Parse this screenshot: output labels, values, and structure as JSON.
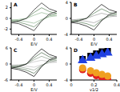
{
  "chart_data": [
    {
      "type": "line",
      "title": "A",
      "x_label": "E/V",
      "xlim": [
        -0.6,
        0.6
      ],
      "xticks": [
        -0.4,
        0,
        0.4
      ],
      "ylim": [
        -3,
        3
      ],
      "yticks": [
        -2,
        0,
        2
      ],
      "series": [
        {
          "color": "#9fbf9f",
          "x": [
            -0.6,
            -0.4,
            -0.2,
            0,
            0.2,
            0.4,
            0.6,
            0.4,
            0.2,
            0,
            -0.2,
            -0.4,
            -0.6
          ],
          "values": [
            -0.3,
            -0.2,
            0,
            0.6,
            1.1,
            0.7,
            0.5,
            0.3,
            -0.2,
            -0.9,
            -0.6,
            -0.4,
            -0.3
          ]
        },
        {
          "color": "#6f8f6f",
          "x": [
            -0.6,
            -0.4,
            -0.2,
            0,
            0.2,
            0.4,
            0.6,
            0.4,
            0.2,
            0,
            -0.2,
            -0.4,
            -0.6
          ],
          "values": [
            -0.5,
            -0.4,
            0,
            1.1,
            2,
            1.3,
            0.9,
            0.5,
            -0.4,
            -1.6,
            -1.1,
            -0.7,
            -0.5
          ]
        },
        {
          "color": "#333333",
          "x": [
            -0.6,
            -0.4,
            -0.2,
            0,
            0.2,
            0.4,
            0.6,
            0.4,
            0.2,
            0,
            -0.2,
            -0.4,
            -0.6
          ],
          "values": [
            -0.8,
            -0.5,
            0,
            1.6,
            2.9,
            1.8,
            1.3,
            0.8,
            -0.5,
            -2.3,
            -1.6,
            -1,
            -0.8
          ]
        }
      ]
    },
    {
      "type": "line",
      "title": "B",
      "x_label": "E/V",
      "xlim": [
        -0.6,
        0.6
      ],
      "xticks": [
        -0.4,
        0,
        0.4
      ],
      "ylim": [
        -4,
        4
      ],
      "yticks": [
        -4,
        0,
        4
      ],
      "series": [
        {
          "color": "#a9a9a9",
          "x": [
            -0.6,
            -0.4,
            -0.2,
            0,
            0.2,
            0.4,
            0.6,
            0.4,
            0.2,
            0,
            -0.2,
            -0.4,
            -0.6
          ],
          "values": [
            -0.4,
            -0.2,
            0,
            0.7,
            1.3,
            0.8,
            0.6,
            0.4,
            -0.2,
            -1.1,
            -0.7,
            -0.5,
            -0.4
          ]
        },
        {
          "color": "#6a8a6a",
          "x": [
            -0.6,
            -0.4,
            -0.2,
            0,
            0.2,
            0.4,
            0.6,
            0.4,
            0.2,
            0,
            -0.2,
            -0.4,
            -0.6
          ],
          "values": [
            -0.7,
            -0.4,
            0,
            1.3,
            2.4,
            1.5,
            1.1,
            0.7,
            -0.4,
            -2,
            -1.3,
            -0.9,
            -0.7
          ]
        },
        {
          "color": "#222222",
          "x": [
            -0.6,
            -0.4,
            -0.2,
            0,
            0.2,
            0.4,
            0.6,
            0.4,
            0.2,
            0,
            -0.2,
            -0.4,
            -0.6
          ],
          "values": [
            -1,
            -0.6,
            0,
            1.9,
            3.5,
            2.2,
            1.6,
            1,
            -0.6,
            -2.9,
            -1.9,
            -1.3,
            -1
          ]
        }
      ]
    },
    {
      "type": "line",
      "title": "C",
      "x_label": "E/V",
      "xlim": [
        -0.6,
        0.6
      ],
      "xticks": [
        -0.4,
        0,
        0.4
      ],
      "ylim": [
        -6,
        6
      ],
      "yticks": [
        -6,
        0,
        6
      ],
      "series": [
        {
          "color": "#c8c8c8",
          "x": [
            -0.6,
            -0.4,
            -0.2,
            0,
            0.2,
            0.4,
            0.6,
            0.4,
            0.2,
            0,
            -0.2,
            -0.4,
            -0.6
          ],
          "values": [
            -0.4,
            -0.3,
            0,
            0.8,
            1.4,
            0.9,
            0.7,
            0.4,
            -0.3,
            -1.2,
            -0.8,
            -0.5,
            -0.4
          ]
        },
        {
          "color": "#9aa89a",
          "x": [
            -0.6,
            -0.4,
            -0.2,
            0,
            0.2,
            0.4,
            0.6,
            0.4,
            0.2,
            0,
            -0.2,
            -0.4,
            -0.6
          ],
          "values": [
            -0.8,
            -0.5,
            0,
            1.6,
            2.9,
            1.8,
            1.3,
            0.8,
            -0.5,
            -2.3,
            -1.6,
            -1,
            -0.8
          ]
        },
        {
          "color": "#5f7a5f",
          "x": [
            -0.6,
            -0.4,
            -0.2,
            0,
            0.2,
            0.4,
            0.6,
            0.4,
            0.2,
            0,
            -0.2,
            -0.4,
            -0.6
          ],
          "values": [
            -1.2,
            -0.8,
            0,
            2.3,
            4.3,
            2.7,
            2,
            1.2,
            -0.8,
            -3.5,
            -2.3,
            -1.6,
            -1.2
          ]
        },
        {
          "color": "#1a1a1a",
          "x": [
            -0.6,
            -0.4,
            -0.2,
            0,
            0.2,
            0.4,
            0.6,
            0.4,
            0.2,
            0,
            -0.2,
            -0.4,
            -0.6
          ],
          "values": [
            -1.6,
            -1,
            0,
            3.1,
            5.7,
            3.6,
            2.6,
            1.6,
            -1,
            -4.7,
            -3.1,
            -2.1,
            -1.6
          ]
        }
      ]
    },
    {
      "type": "scatter",
      "title": "D",
      "x_label": "v1/2",
      "xlim": [
        0,
        0.4
      ],
      "xticks": [
        0,
        0.2,
        0.4
      ],
      "ylim": [
        -4,
        4
      ],
      "yticks": [
        -4,
        0,
        4
      ],
      "x": [
        0.1,
        0.17,
        0.22,
        0.27,
        0.32
      ],
      "series": [
        {
          "color": "#000000",
          "marker": "square",
          "values": [
            1.2,
            2,
            2.6,
            3.1,
            3.6
          ]
        },
        {
          "color": "#e02020",
          "marker": "circle",
          "values": [
            -1.4,
            -2.3,
            -2.9,
            -3.4,
            -3.9
          ]
        },
        {
          "color": "#2040e0",
          "marker": "triangle",
          "values": [
            0.9,
            1.5,
            2,
            2.4,
            2.8
          ]
        },
        {
          "color": "#f0a020",
          "marker": "circle",
          "values": [
            -1,
            -1.7,
            -2.2,
            -2.6,
            -3
          ]
        }
      ]
    }
  ]
}
